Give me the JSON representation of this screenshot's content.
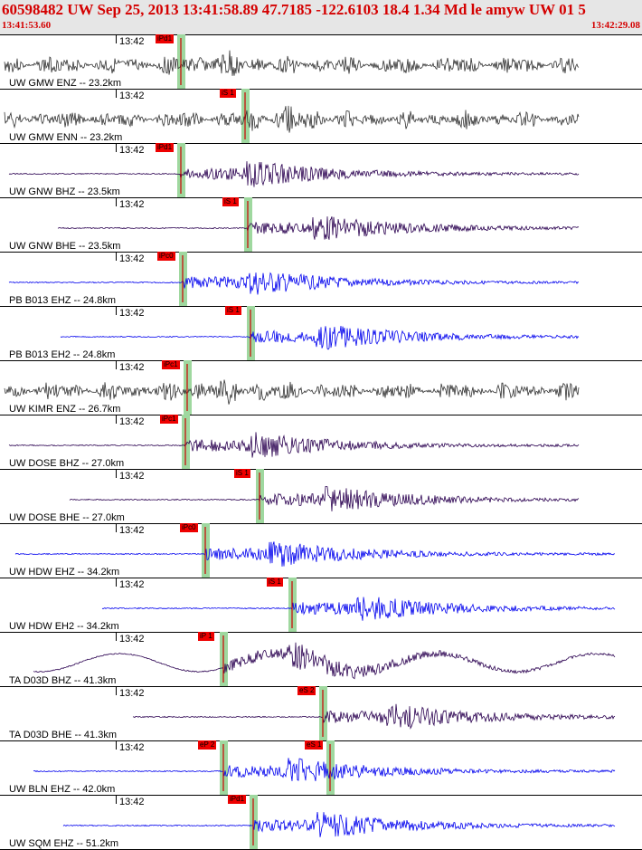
{
  "header": {
    "title": "60598482 UW Sep 25, 2013 13:41:58.89   47.7185 -122.6103 18.4 1.34 Md le amyw UW 01    5",
    "start_time": "13:41:53.60",
    "end_time": "13:42:29.08"
  },
  "colors": {
    "header_bg": "#e6e6e6",
    "header_text": "#d40000",
    "pick_box": "#ee0000",
    "pick_line": "#cc0000",
    "pick_window": "#9fd89f",
    "trace_gray": "#333333",
    "trace_purple": "#2a0050",
    "trace_blue": "#0000ee",
    "fit_curve": "#000000"
  },
  "traces": [
    {
      "label": "UW GMW ENZ -- 23.2km",
      "tick": "13:42",
      "color": "gray",
      "style": "noise",
      "picks": [
        {
          "label": "iPd1",
          "t": 200
        }
      ]
    },
    {
      "label": "UW GMW ENN -- 23.2km",
      "tick": "13:42",
      "color": "gray",
      "style": "noise",
      "picks": [
        {
          "label": "iS 1",
          "t": 271
        }
      ]
    },
    {
      "label": "UW GNW BHZ -- 23.5km",
      "tick": "13:42",
      "color": "purple",
      "style": "quake",
      "picks": [
        {
          "label": "iPd1",
          "t": 200
        }
      ]
    },
    {
      "label": "UW GNW BHE -- 23.5km",
      "tick": "13:42",
      "color": "purple",
      "style": "quake",
      "picks": [
        {
          "label": "iS 1",
          "t": 274
        }
      ]
    },
    {
      "label": "PB B013 EHZ -- 24.8km",
      "tick": "13:42",
      "color": "blue",
      "style": "quake",
      "picks": [
        {
          "label": "iPc0",
          "t": 202
        }
      ]
    },
    {
      "label": "PB B013 EH2 -- 24.8km",
      "tick": "13:42",
      "color": "blue",
      "style": "quake",
      "picks": [
        {
          "label": "iS 1",
          "t": 277
        }
      ]
    },
    {
      "label": "UW KIMR ENZ -- 26.7km",
      "tick": "13:42",
      "color": "gray",
      "style": "noise",
      "picks": [
        {
          "label": "iPc1",
          "t": 207
        }
      ]
    },
    {
      "label": "UW DOSE BHZ -- 27.0km",
      "tick": "13:42",
      "color": "purple",
      "style": "quake",
      "picks": [
        {
          "label": "iPc1",
          "t": 205
        }
      ]
    },
    {
      "label": "UW DOSE BHE -- 27.0km",
      "tick": "13:42",
      "color": "purple",
      "style": "quake",
      "picks": [
        {
          "label": "iS 1",
          "t": 287
        }
      ]
    },
    {
      "label": "UW HDW EHZ -- 34.2km",
      "tick": "13:42",
      "color": "blue",
      "style": "quake",
      "picks": [
        {
          "label": "iPc0",
          "t": 227
        }
      ]
    },
    {
      "label": "UW HDW EH2 -- 34.2km",
      "tick": "13:42",
      "color": "blue",
      "style": "quake",
      "picks": [
        {
          "label": "iS 1",
          "t": 323
        }
      ]
    },
    {
      "label": "TA D03D BHZ -- 41.3km",
      "tick": "13:42",
      "color": "purple",
      "style": "swell",
      "picks": [
        {
          "label": "iP 1",
          "t": 247
        }
      ]
    },
    {
      "label": "TA D03D BHE -- 41.3km",
      "tick": "13:42",
      "color": "purple",
      "style": "quake",
      "picks": [
        {
          "label": "eS 2",
          "t": 357
        }
      ]
    },
    {
      "label": "UW BLN EHZ -- 42.0km",
      "tick": "13:42",
      "color": "blue",
      "style": "quake",
      "picks": [
        {
          "label": "eP 2",
          "t": 247
        },
        {
          "label": "eS 1",
          "t": 365
        }
      ]
    },
    {
      "label": "UW SQM EHZ -- 51.2km",
      "tick": "13:42",
      "color": "blue",
      "style": "quake",
      "picks": [
        {
          "label": "iPd1",
          "t": 280
        }
      ]
    }
  ]
}
